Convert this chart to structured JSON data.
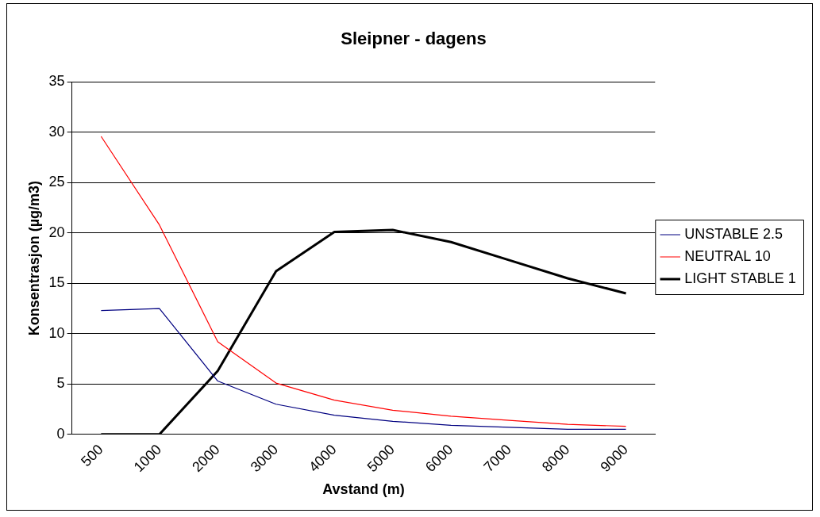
{
  "chart_data": {
    "type": "line",
    "title": "Sleipner - dagens",
    "xlabel": "Avstand (m)",
    "ylabel": "Konsentrasjon (µg/m3)",
    "categories": [
      "500",
      "1000",
      "2000",
      "3000",
      "4000",
      "5000",
      "6000",
      "7000",
      "8000",
      "9000"
    ],
    "series": [
      {
        "name": "UNSTABLE 2.5",
        "color": "#000080",
        "values": [
          12.3,
          12.5,
          5.3,
          3.0,
          1.9,
          1.3,
          0.9,
          0.7,
          0.5,
          0.5
        ]
      },
      {
        "name": "NEUTRAL 10",
        "color": "#ff0000",
        "values": [
          29.6,
          20.8,
          9.2,
          5.1,
          3.4,
          2.4,
          1.8,
          1.4,
          1.0,
          0.8
        ]
      },
      {
        "name": "LIGHT STABLE 1",
        "color": "#000000",
        "values": [
          0,
          0,
          6.3,
          16.2,
          20.1,
          20.3,
          19.1,
          17.3,
          15.5,
          14.0
        ]
      }
    ],
    "ylim": [
      0,
      35
    ],
    "yticks": [
      0,
      5,
      10,
      15,
      20,
      25,
      30,
      35
    ],
    "grid": "y",
    "legend": "right",
    "marker": "none",
    "line_style": "solid"
  }
}
